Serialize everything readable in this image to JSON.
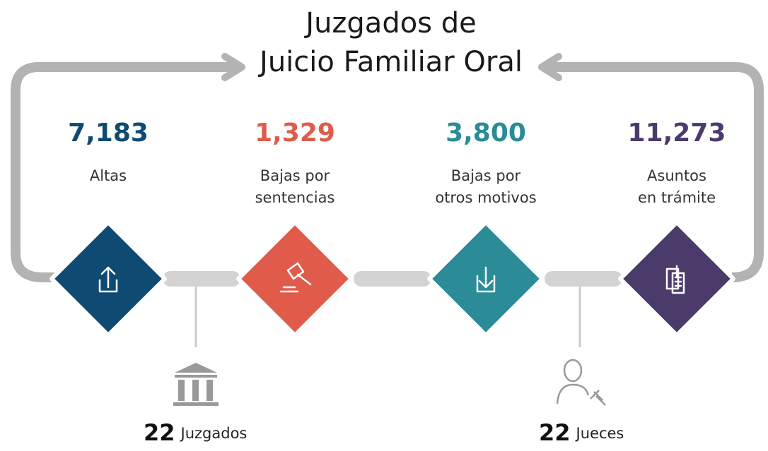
{
  "title": [
    "Juzgados de",
    "Juicio Familiar Oral"
  ],
  "items": [
    {
      "value": "7,183",
      "label": [
        "Altas"
      ]
    },
    {
      "value": "1,329",
      "label": [
        "Bajas por",
        "sentencias"
      ]
    },
    {
      "value": "3,800",
      "label": [
        "Bajas por",
        "otros motivos"
      ]
    },
    {
      "value": "11,273",
      "label": [
        "Asuntos",
        "en trámite"
      ]
    }
  ],
  "footer": [
    {
      "number": "22",
      "text": "Juzgados"
    },
    {
      "number": "22",
      "text": "Jueces"
    }
  ]
}
